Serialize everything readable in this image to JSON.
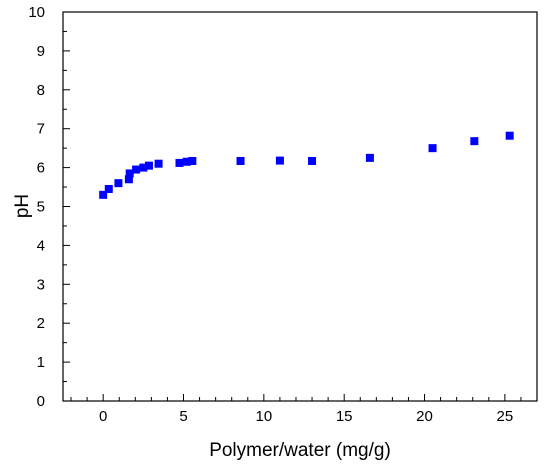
{
  "chart_data": {
    "type": "scatter",
    "xlabel": "Polymer/water (mg/g)",
    "ylabel": "pH",
    "xlim": [
      -2.5,
      27
    ],
    "ylim": [
      0,
      10
    ],
    "x_ticks": [
      "0",
      "5",
      "10",
      "15",
      "20",
      "25"
    ],
    "y_ticks": [
      "0",
      "1",
      "2",
      "3",
      "4",
      "5",
      "6",
      "7",
      "8",
      "9",
      "10"
    ],
    "grid": false,
    "marker": "square",
    "marker_color": "#0000FF",
    "series": [
      {
        "x": [
          0.0,
          0.35,
          0.95,
          1.6,
          1.65,
          2.05,
          2.5,
          2.85,
          3.45,
          4.75,
          5.2,
          5.55,
          8.55,
          11.0,
          13.0,
          16.6,
          20.5,
          23.1,
          25.3
        ],
        "y": [
          5.3,
          5.45,
          5.6,
          5.7,
          5.85,
          5.95,
          6.0,
          6.05,
          6.1,
          6.12,
          6.15,
          6.17,
          6.17,
          6.18,
          6.17,
          6.25,
          6.5,
          6.68,
          6.82
        ]
      }
    ]
  }
}
